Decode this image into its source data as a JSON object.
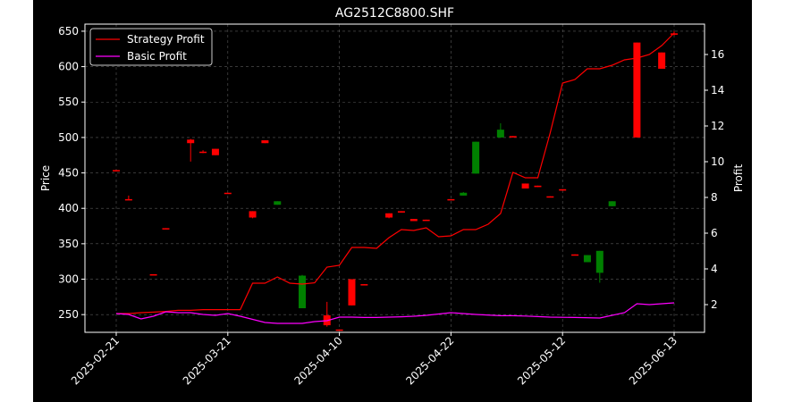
{
  "chart_data": {
    "type": "candlestick",
    "title": "AG2512C8800.SHF",
    "xlabel": "",
    "ylabel": "Price",
    "y2label": "Profit",
    "ylim": [
      225,
      660
    ],
    "y2lim": [
      0.45,
      17.7
    ],
    "yticks": [
      250,
      300,
      350,
      400,
      450,
      500,
      550,
      600,
      650
    ],
    "y2ticks": [
      2,
      4,
      6,
      8,
      10,
      12,
      14,
      16
    ],
    "x_labels": [
      {
        "index": 0,
        "label": "2025-02-21"
      },
      {
        "index": 9,
        "label": "2025-03-21"
      },
      {
        "index": 18,
        "label": "2025-04-10"
      },
      {
        "index": 27,
        "label": "2025-04-22"
      },
      {
        "index": 36,
        "label": "2025-05-12"
      },
      {
        "index": 45,
        "label": "2025-06-13"
      }
    ],
    "grid": true,
    "legend_position": "top-left",
    "background": "#000000",
    "colors": {
      "up": "#008000",
      "down": "#ff0000",
      "strategy": "#ff0000",
      "basic": "#ff00ff",
      "axis": "#ffffff",
      "grid": "#808080"
    },
    "candles": [
      {
        "open": 454,
        "high": 454,
        "low": 453,
        "close": 453
      },
      {
        "open": 413,
        "high": 418,
        "low": 412,
        "close": 412
      },
      {
        "open": 307,
        "high": 307,
        "low": 306,
        "close": 306
      },
      {
        "open": 372,
        "high": 372,
        "low": 371,
        "close": 371
      },
      {
        "open": 497,
        "high": 498,
        "low": 466,
        "close": 492
      },
      {
        "open": 480,
        "high": 482,
        "low": 478,
        "close": 479
      },
      {
        "open": 484,
        "high": 484,
        "low": 475,
        "close": 475
      },
      {
        "open": 422,
        "high": 422,
        "low": 421,
        "close": 421
      },
      {
        "open": 396,
        "high": 396,
        "low": 386,
        "close": 387
      },
      {
        "open": 496,
        "high": 496,
        "low": 492,
        "close": 492
      },
      {
        "open": 405,
        "high": 410,
        "low": 405,
        "close": 410
      },
      {
        "open": 259,
        "high": 306,
        "low": 259,
        "close": 305
      },
      {
        "open": 249,
        "high": 268,
        "low": 233,
        "close": 235
      },
      {
        "open": 229,
        "high": 229,
        "low": 228,
        "close": 228
      },
      {
        "open": 300,
        "high": 300,
        "low": 263,
        "close": 263
      },
      {
        "open": 293,
        "high": 293,
        "low": 292,
        "close": 292
      },
      {
        "open": 393,
        "high": 393,
        "low": 386,
        "close": 387
      },
      {
        "open": 396,
        "high": 396,
        "low": 394,
        "close": 394
      },
      {
        "open": 385,
        "high": 385,
        "low": 382,
        "close": 382
      },
      {
        "open": 384,
        "high": 384,
        "low": 383,
        "close": 383
      },
      {
        "open": 413,
        "high": 413,
        "low": 412,
        "close": 412
      },
      {
        "open": 418,
        "high": 423,
        "low": 418,
        "close": 422
      },
      {
        "open": 449,
        "high": 494,
        "low": 449,
        "close": 494
      },
      {
        "open": 500,
        "high": 520,
        "low": 500,
        "close": 511
      },
      {
        "open": 502,
        "high": 502,
        "low": 500,
        "close": 500
      },
      {
        "open": 435,
        "high": 435,
        "low": 428,
        "close": 428
      },
      {
        "open": 432,
        "high": 432,
        "low": 430,
        "close": 430
      },
      {
        "open": 417,
        "high": 417,
        "low": 416,
        "close": 416
      },
      {
        "open": 427,
        "high": 427,
        "low": 425,
        "close": 425
      },
      {
        "open": 335,
        "high": 335,
        "low": 334,
        "close": 334
      },
      {
        "open": 324,
        "high": 334,
        "low": 324,
        "close": 334
      },
      {
        "open": 309,
        "high": 340,
        "low": 295,
        "close": 340
      },
      {
        "open": 403,
        "high": 410,
        "low": 403,
        "close": 410
      },
      {
        "open": 634,
        "high": 634,
        "low": 500,
        "close": 500
      },
      {
        "open": 620,
        "high": 620,
        "low": 597,
        "close": 597
      },
      {
        "open": 647,
        "high": 650,
        "low": 644,
        "close": 645
      }
    ],
    "candle_indices": [
      0,
      1,
      3,
      4,
      6,
      7,
      8,
      9,
      11,
      12,
      13,
      15,
      17,
      18,
      19,
      20,
      22,
      23,
      24,
      25,
      27,
      28,
      29,
      31,
      32,
      33,
      34,
      35,
      36,
      37,
      38,
      39,
      40,
      42,
      44,
      45
    ],
    "series": [
      {
        "name": "Strategy Profit",
        "color": "#ff0000",
        "values": [
          1.5,
          1.5,
          1.55,
          1.58,
          1.62,
          1.68,
          1.68,
          1.72,
          1.72,
          1.72,
          1.72,
          3.2,
          3.2,
          3.55,
          3.2,
          3.15,
          3.22,
          4.1,
          4.2,
          5.2,
          5.2,
          5.15,
          5.75,
          6.2,
          6.15,
          6.3,
          5.8,
          5.85,
          6.2,
          6.2,
          6.5,
          7.1,
          9.4,
          9.1,
          9.1,
          11.6,
          14.4,
          14.6,
          15.2,
          15.2,
          15.4,
          15.7,
          15.8,
          16.0,
          16.5,
          17.2
        ],
        "x_indices": [
          0,
          1,
          2,
          3,
          4,
          5,
          6,
          7,
          8,
          9,
          10,
          11,
          12,
          13,
          14,
          15,
          16,
          17,
          18,
          19,
          20,
          21,
          22,
          23,
          24,
          25,
          26,
          27,
          28,
          29,
          30,
          31,
          32,
          33,
          34,
          35,
          36,
          37,
          38,
          39,
          40,
          41,
          42,
          43,
          44,
          45
        ]
      },
      {
        "name": "Basic Profit",
        "color": "#ff00ff",
        "values": [
          1.5,
          1.45,
          1.2,
          1.35,
          1.6,
          1.55,
          1.55,
          1.45,
          1.4,
          1.5,
          1.35,
          1.0,
          0.95,
          0.95,
          0.95,
          1.05,
          1.1,
          1.3,
          1.3,
          1.28,
          1.28,
          1.32,
          1.35,
          1.4,
          1.55,
          1.5,
          1.45,
          1.38,
          1.38,
          1.36,
          1.33,
          1.3,
          1.28,
          1.25,
          1.55,
          2.05,
          2.0,
          2.05,
          2.1
        ],
        "x_indices": [
          0,
          1,
          2,
          3,
          4,
          5,
          6,
          7,
          8,
          9,
          10,
          12,
          13,
          14,
          15,
          16,
          17,
          18,
          19,
          20,
          21,
          23,
          24,
          25,
          27,
          28,
          29,
          31,
          32,
          33,
          34,
          35,
          37,
          39,
          41,
          42,
          43,
          44,
          45
        ]
      }
    ]
  }
}
